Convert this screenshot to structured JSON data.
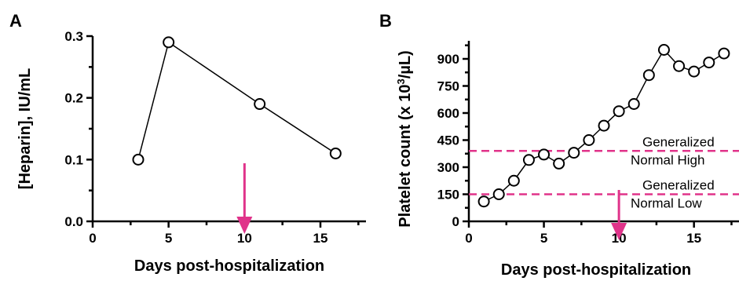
{
  "chart_data": [
    {
      "panel": "A",
      "type": "line",
      "xlabel": "Days post-hospitalization",
      "ylabel": "[Heparin], IU/mL",
      "xlim": [
        0,
        18
      ],
      "ylim": [
        0,
        0.3
      ],
      "xticks": [
        0,
        5,
        10,
        15
      ],
      "yticks": [
        0.0,
        0.1,
        0.2,
        0.3
      ],
      "ytick_labels": [
        "0.0",
        "0.1",
        "0.2",
        "0.3"
      ],
      "x": [
        3,
        5,
        11,
        16
      ],
      "y": [
        0.1,
        0.29,
        0.19,
        0.11
      ],
      "annotations": [
        {
          "type": "arrow",
          "x": 10,
          "color": "#e0338a"
        }
      ]
    },
    {
      "panel": "B",
      "type": "line",
      "xlabel": "Days post-hospitalization",
      "ylabel_parts": {
        "before": "Platelet count (x 10",
        "sup": "3",
        "after": "/µL)"
      },
      "xlim": [
        0,
        18
      ],
      "ylim": [
        0,
        1000
      ],
      "xticks": [
        0,
        5,
        10,
        15
      ],
      "yticks": [
        0,
        150,
        300,
        450,
        600,
        750,
        900
      ],
      "ytick_labels": [
        "0",
        "150",
        "300",
        "450",
        "600",
        "750",
        "900"
      ],
      "x": [
        1,
        2,
        3,
        4,
        5,
        6,
        7,
        8,
        9,
        10,
        11,
        12,
        13,
        14,
        15,
        16,
        17
      ],
      "y": [
        110,
        150,
        225,
        340,
        370,
        320,
        380,
        450,
        530,
        610,
        650,
        810,
        950,
        860,
        830,
        880,
        930
      ],
      "reference_lines": [
        {
          "y": 390,
          "labels": [
            "Generalized",
            "Normal High"
          ],
          "color": "#e0338a"
        },
        {
          "y": 150,
          "labels": [
            "Generalized",
            "Normal Low"
          ],
          "color": "#e0338a"
        }
      ],
      "annotations": [
        {
          "type": "arrow",
          "x": 10,
          "color": "#e0338a"
        }
      ]
    }
  ]
}
